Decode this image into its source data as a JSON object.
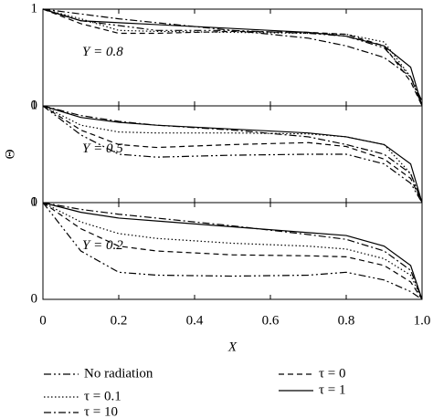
{
  "chart_data": [
    {
      "type": "line",
      "annotation": "Y = 0.8",
      "ylim": [
        0,
        1
      ],
      "yticks": [
        0,
        1
      ],
      "x": [
        0,
        0.1,
        0.2,
        0.3,
        0.5,
        0.7,
        0.8,
        0.9,
        0.97,
        1
      ],
      "series": [
        {
          "name": "No radiation",
          "dash": "8 3 2 3 2 3",
          "values": [
            1,
            0.88,
            0.83,
            0.78,
            0.78,
            0.75,
            0.72,
            0.6,
            0.3,
            0.05
          ]
        },
        {
          "name": "τ = 0.1",
          "dash": "1.5 2.5",
          "values": [
            1,
            0.9,
            0.78,
            0.77,
            0.76,
            0.75,
            0.74,
            0.66,
            0.3,
            0
          ]
        },
        {
          "name": "τ = 10",
          "dash": "8 3 2 3",
          "values": [
            1,
            0.95,
            0.9,
            0.86,
            0.78,
            0.7,
            0.62,
            0.5,
            0.3,
            0
          ]
        },
        {
          "name": "τ = 0",
          "dash": "6 4",
          "values": [
            1,
            0.85,
            0.75,
            0.75,
            0.77,
            0.76,
            0.74,
            0.62,
            0.25,
            0
          ]
        },
        {
          "name": "τ = 1",
          "dash": "",
          "values": [
            1,
            0.88,
            0.86,
            0.84,
            0.8,
            0.76,
            0.72,
            0.62,
            0.4,
            0
          ]
        }
      ]
    },
    {
      "type": "line",
      "annotation": "Y = 0.5",
      "ylim": [
        0,
        1
      ],
      "yticks": [
        0,
        1
      ],
      "ylabel": "Θ",
      "x": [
        0,
        0.1,
        0.2,
        0.3,
        0.5,
        0.7,
        0.8,
        0.9,
        0.97,
        1
      ],
      "series": [
        {
          "dash": "8 3 2 3 2 3",
          "values": [
            1,
            0.7,
            0.5,
            0.47,
            0.49,
            0.5,
            0.5,
            0.4,
            0.2,
            0
          ]
        },
        {
          "dash": "1.5 2.5",
          "values": [
            1,
            0.8,
            0.73,
            0.72,
            0.72,
            0.71,
            0.68,
            0.6,
            0.3,
            0
          ]
        },
        {
          "dash": "8 3 2 3",
          "values": [
            1,
            0.9,
            0.84,
            0.8,
            0.75,
            0.68,
            0.6,
            0.5,
            0.3,
            0
          ]
        },
        {
          "dash": "6 4",
          "values": [
            1,
            0.75,
            0.6,
            0.57,
            0.6,
            0.62,
            0.58,
            0.45,
            0.25,
            0
          ]
        },
        {
          "dash": "",
          "values": [
            1,
            0.88,
            0.83,
            0.8,
            0.76,
            0.72,
            0.68,
            0.6,
            0.4,
            0
          ]
        }
      ]
    },
    {
      "type": "line",
      "annotation": "Y = 0.2",
      "ylim": [
        0,
        1
      ],
      "yticks": [
        0,
        1
      ],
      "xlabel": "X",
      "xticks": [
        0,
        0.2,
        0.4,
        0.6,
        0.8,
        {
          "value": 1,
          "label": "1.0"
        }
      ],
      "x": [
        0,
        0.1,
        0.2,
        0.3,
        0.5,
        0.7,
        0.8,
        0.9,
        0.97,
        1
      ],
      "series": [
        {
          "dash": "8 3 2 3 2 3",
          "values": [
            1,
            0.5,
            0.28,
            0.25,
            0.24,
            0.25,
            0.28,
            0.2,
            0.08,
            0
          ]
        },
        {
          "dash": "1.5 2.5",
          "values": [
            1,
            0.8,
            0.68,
            0.63,
            0.58,
            0.55,
            0.52,
            0.42,
            0.25,
            0
          ]
        },
        {
          "dash": "8 3 2 3",
          "values": [
            1,
            0.93,
            0.88,
            0.84,
            0.76,
            0.67,
            0.62,
            0.5,
            0.3,
            0
          ]
        },
        {
          "dash": "6 4",
          "values": [
            1,
            0.73,
            0.55,
            0.5,
            0.46,
            0.45,
            0.44,
            0.35,
            0.18,
            0
          ]
        },
        {
          "dash": "",
          "values": [
            1,
            0.9,
            0.84,
            0.81,
            0.75,
            0.69,
            0.66,
            0.55,
            0.35,
            0
          ]
        }
      ]
    }
  ]
}
